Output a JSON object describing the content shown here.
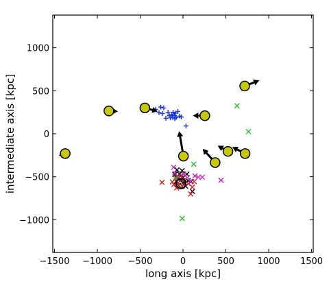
{
  "chart_data": {
    "type": "scatter",
    "xlabel": "long axis [kpc]",
    "ylabel": "intermediate axis [kpc]",
    "xlim": [
      -1520,
      1520
    ],
    "ylim": [
      -1380,
      1380
    ],
    "xticks": [
      -1500,
      -1000,
      -500,
      0,
      500,
      1000,
      1500
    ],
    "xtick_labels": [
      "−1500",
      "−1000",
      "−500",
      "0",
      "500",
      "1000",
      "1500"
    ],
    "yticks": [
      -1000,
      -500,
      0,
      500,
      1000
    ],
    "ytick_labels": [
      "−1000",
      "−500",
      "0",
      "500",
      "1000"
    ],
    "grid": false,
    "colors": {
      "circle_fill": "#c8c80a",
      "arrow": "#000000",
      "blue": "#1a33dd",
      "red": "#d8201c",
      "magenta": "#c424c8",
      "green": "#2cba2c",
      "black": "#000000"
    },
    "circles": [
      {
        "x": -1375,
        "y": -230,
        "dx": -75,
        "dy": -25
      },
      {
        "x": -865,
        "y": 265,
        "dx": 105,
        "dy": -5
      },
      {
        "x": -445,
        "y": 300,
        "dx": 150,
        "dy": -40
      },
      {
        "x": 5,
        "y": -260,
        "dx": -50,
        "dy": 290
      },
      {
        "x": 255,
        "y": 210,
        "dx": -140,
        "dy": 0
      },
      {
        "x": 375,
        "y": -335,
        "dx": -145,
        "dy": 160
      },
      {
        "x": 525,
        "y": -205,
        "dx": -120,
        "dy": 65
      },
      {
        "x": 720,
        "y": 555,
        "dx": 170,
        "dy": 65
      },
      {
        "x": 725,
        "y": -230,
        "dx": -150,
        "dy": 75
      }
    ],
    "big_circle": {
      "x": -25,
      "y": -580
    },
    "series": [
      {
        "marker": "+",
        "color": "blue",
        "points": [
          [
            -320,
            285
          ],
          [
            -280,
            245
          ],
          [
            -260,
            310
          ],
          [
            -240,
            235
          ],
          [
            -225,
            300
          ],
          [
            -200,
            180
          ],
          [
            -175,
            250
          ],
          [
            -160,
            210
          ],
          [
            -145,
            185
          ],
          [
            -130,
            225
          ],
          [
            -120,
            190
          ],
          [
            -115,
            250
          ],
          [
            -100,
            210
          ],
          [
            -95,
            175
          ],
          [
            -85,
            240
          ],
          [
            -80,
            190
          ],
          [
            -60,
            260
          ],
          [
            -40,
            205
          ],
          [
            -20,
            195
          ],
          [
            35,
            90
          ]
        ]
      },
      {
        "marker": "x",
        "color": "black",
        "points": [
          [
            -95,
            -475
          ],
          [
            -80,
            -555
          ],
          [
            -70,
            -420
          ],
          [
            -60,
            -520
          ],
          [
            -50,
            -600
          ],
          [
            -40,
            -470
          ],
          [
            -30,
            -545
          ],
          [
            -10,
            -430
          ],
          [
            0,
            -505
          ],
          [
            10,
            -565
          ],
          [
            30,
            -610
          ],
          [
            45,
            -470
          ],
          [
            60,
            -545
          ],
          [
            95,
            -555
          ],
          [
            110,
            -670
          ]
        ]
      },
      {
        "marker": "x",
        "color": "red",
        "points": [
          [
            -245,
            -565
          ],
          [
            -125,
            -560
          ],
          [
            -105,
            -590
          ],
          [
            -90,
            -515
          ],
          [
            -75,
            -630
          ],
          [
            -55,
            -570
          ],
          [
            -30,
            -495
          ],
          [
            -10,
            -610
          ],
          [
            20,
            -535
          ],
          [
            65,
            -580
          ],
          [
            90,
            -700
          ],
          [
            110,
            -620
          ],
          [
            130,
            -555
          ]
        ]
      },
      {
        "marker": "x",
        "color": "magenta",
        "points": [
          [
            -110,
            -390
          ],
          [
            -95,
            -460
          ],
          [
            -70,
            -520
          ],
          [
            10,
            -470
          ],
          [
            50,
            -510
          ],
          [
            90,
            -555
          ],
          [
            140,
            -490
          ],
          [
            180,
            -505
          ],
          [
            225,
            -505
          ],
          [
            445,
            -540
          ]
        ]
      },
      {
        "marker": "x",
        "color": "green",
        "points": [
          [
            125,
            -355
          ],
          [
            265,
            210
          ],
          [
            630,
            325
          ],
          [
            765,
            25
          ],
          [
            -10,
            -985
          ],
          [
            -80,
            -520
          ]
        ]
      }
    ]
  }
}
